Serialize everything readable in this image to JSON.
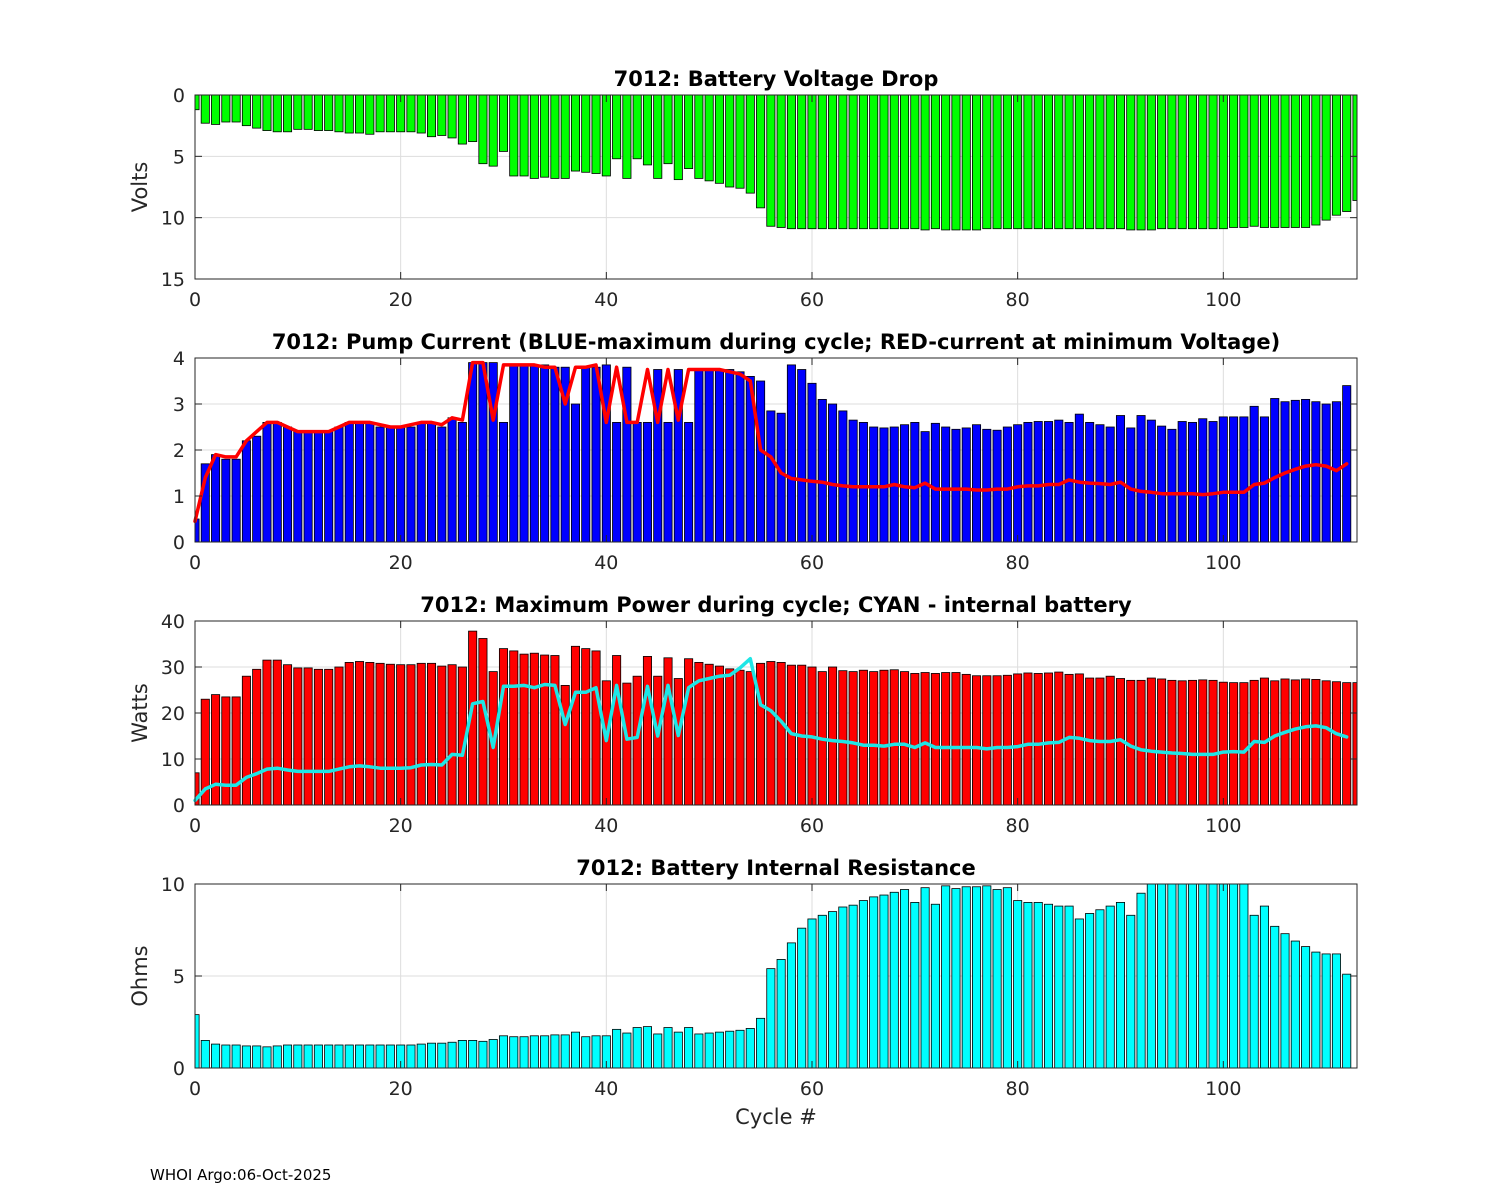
{
  "footer": "WHOI Argo:06-Oct-2025",
  "colors": {
    "voltage": "#00ff00",
    "current_bar": "#0000ff",
    "current_line": "#ff0000",
    "power_bar": "#ff0000",
    "power_line": "#1ee6e6",
    "resistance": "#00ffff",
    "grid": "#dddddd"
  },
  "chart_data": [
    {
      "type": "bar",
      "title": "7012: Battery Voltage Drop",
      "ylabel": "Volts",
      "xlabel": "",
      "xlim": [
        0,
        113
      ],
      "ylim": [
        0,
        15
      ],
      "y_reversed": true,
      "xticks": [
        0,
        20,
        40,
        60,
        80,
        100
      ],
      "yticks": [
        0,
        5,
        10,
        15
      ],
      "grid": true,
      "x_start": 0,
      "series": [
        {
          "values": [
            1.2,
            2.3,
            2.4,
            2.2,
            2.2,
            2.5,
            2.7,
            2.9,
            3.0,
            3.0,
            2.8,
            2.8,
            2.9,
            2.9,
            3.0,
            3.1,
            3.1,
            3.2,
            3.0,
            3.0,
            3.0,
            3.0,
            3.1,
            3.4,
            3.3,
            3.5,
            4.0,
            3.8,
            5.6,
            5.8,
            4.6,
            6.6,
            6.6,
            6.8,
            6.7,
            6.8,
            6.8,
            6.2,
            6.3,
            6.4,
            6.6,
            5.2,
            6.8,
            5.2,
            5.7,
            6.8,
            5.6,
            6.9,
            6.0,
            6.8,
            7.0,
            7.2,
            7.5,
            7.6,
            8.0,
            9.2,
            10.7,
            10.8,
            10.9,
            10.9,
            10.9,
            10.9,
            10.9,
            10.9,
            10.9,
            10.9,
            10.9,
            10.9,
            10.9,
            10.9,
            10.9,
            11.0,
            10.9,
            11.0,
            11.0,
            11.0,
            11.0,
            10.9,
            10.9,
            10.9,
            10.9,
            10.9,
            10.9,
            10.9,
            10.9,
            10.9,
            10.9,
            10.9,
            10.9,
            10.9,
            10.9,
            11.0,
            11.0,
            11.0,
            10.9,
            10.9,
            10.9,
            10.9,
            10.9,
            10.9,
            10.9,
            10.8,
            10.8,
            10.7,
            10.8,
            10.8,
            10.8,
            10.8,
            10.8,
            10.6,
            10.2,
            9.8,
            9.5,
            8.6
          ]
        }
      ]
    },
    {
      "type": "bar",
      "title": "7012: Pump Current (BLUE-maximum during cycle; RED-current at minimum Voltage)",
      "ylabel": "",
      "xlabel": "",
      "xlim": [
        0,
        113
      ],
      "ylim": [
        0,
        4
      ],
      "xticks": [
        0,
        20,
        40,
        60,
        80,
        100
      ],
      "yticks": [
        0,
        1,
        2,
        3,
        4
      ],
      "grid": true,
      "x_start": 0,
      "series": [
        {
          "values": [
            0.5,
            1.7,
            1.9,
            1.8,
            1.8,
            2.2,
            2.3,
            2.6,
            2.6,
            2.5,
            2.4,
            2.4,
            2.4,
            2.4,
            2.5,
            2.6,
            2.6,
            2.6,
            2.5,
            2.5,
            2.5,
            2.5,
            2.6,
            2.6,
            2.5,
            2.7,
            2.6,
            3.9,
            3.9,
            3.9,
            2.6,
            3.85,
            3.85,
            3.85,
            3.85,
            3.8,
            3.8,
            3.0,
            3.8,
            3.8,
            3.85,
            2.6,
            3.8,
            2.6,
            2.6,
            3.75,
            2.6,
            3.75,
            2.6,
            3.75,
            3.75,
            3.75,
            3.75,
            3.7,
            3.6,
            3.5,
            2.85,
            2.8,
            3.85,
            3.75,
            3.45,
            3.1,
            3.0,
            2.85,
            2.65,
            2.6,
            2.5,
            2.48,
            2.5,
            2.55,
            2.6,
            2.4,
            2.58,
            2.5,
            2.45,
            2.48,
            2.55,
            2.45,
            2.43,
            2.5,
            2.55,
            2.6,
            2.62,
            2.62,
            2.65,
            2.6,
            2.78,
            2.6,
            2.55,
            2.5,
            2.75,
            2.48,
            2.75,
            2.65,
            2.52,
            2.45,
            2.62,
            2.6,
            2.68,
            2.62,
            2.72,
            2.72,
            2.72,
            2.95,
            2.72,
            3.12,
            3.05,
            3.08,
            3.1,
            3.05,
            3.0,
            3.05,
            3.4
          ]
        },
        {
          "values": [
            0.45,
            1.4,
            1.9,
            1.85,
            1.85,
            2.2,
            2.4,
            2.6,
            2.6,
            2.5,
            2.4,
            2.4,
            2.4,
            2.4,
            2.5,
            2.6,
            2.6,
            2.6,
            2.55,
            2.5,
            2.5,
            2.55,
            2.6,
            2.6,
            2.55,
            2.7,
            2.65,
            3.9,
            3.9,
            2.65,
            3.85,
            3.85,
            3.85,
            3.85,
            3.8,
            3.8,
            3.0,
            3.8,
            3.8,
            3.85,
            2.6,
            3.8,
            2.6,
            2.6,
            3.75,
            2.6,
            3.75,
            2.65,
            3.75,
            3.75,
            3.75,
            3.75,
            3.7,
            3.65,
            3.5,
            2.0,
            1.85,
            1.5,
            1.38,
            1.35,
            1.32,
            1.3,
            1.25,
            1.22,
            1.2,
            1.2,
            1.2,
            1.2,
            1.25,
            1.2,
            1.18,
            1.28,
            1.15,
            1.15,
            1.15,
            1.15,
            1.13,
            1.13,
            1.15,
            1.15,
            1.2,
            1.22,
            1.22,
            1.25,
            1.25,
            1.35,
            1.3,
            1.28,
            1.27,
            1.25,
            1.3,
            1.15,
            1.1,
            1.08,
            1.05,
            1.05,
            1.05,
            1.05,
            1.03,
            1.05,
            1.08,
            1.08,
            1.08,
            1.25,
            1.28,
            1.4,
            1.5,
            1.58,
            1.65,
            1.68,
            1.65,
            1.55,
            1.7
          ]
        }
      ]
    },
    {
      "type": "bar",
      "title": "7012: Maximum Power during cycle; CYAN - internal battery",
      "ylabel": "Watts",
      "xlabel": "",
      "xlim": [
        0,
        113
      ],
      "ylim": [
        0,
        40
      ],
      "xticks": [
        0,
        20,
        40,
        60,
        80,
        100
      ],
      "yticks": [
        0,
        10,
        20,
        30,
        40
      ],
      "grid": true,
      "x_start": 0,
      "series": [
        {
          "values": [
            7,
            23,
            24,
            23.5,
            23.5,
            28,
            29.5,
            31.5,
            31.5,
            30.5,
            29.8,
            29.8,
            29.5,
            29.5,
            30,
            31,
            31.2,
            31,
            30.8,
            30.6,
            30.5,
            30.5,
            30.8,
            30.8,
            30.2,
            30.5,
            30,
            37.8,
            36.2,
            29,
            34,
            33.5,
            32.8,
            33,
            32.6,
            32.5,
            26,
            34.5,
            34,
            33.5,
            27,
            32.5,
            26.5,
            28,
            32.3,
            28,
            32,
            27.5,
            31.8,
            31,
            30.6,
            30.2,
            29.6,
            29.3,
            29,
            30.8,
            31.2,
            31,
            30.4,
            30.4,
            30,
            29,
            30,
            29.2,
            29,
            29.3,
            29,
            29.3,
            29.4,
            29,
            28.6,
            28.8,
            28.6,
            28.8,
            28.8,
            28.4,
            28.1,
            28.1,
            28.1,
            28.2,
            28.5,
            28.7,
            28.6,
            28.7,
            28.9,
            28.4,
            28.5,
            27.6,
            27.6,
            28,
            27.5,
            27.1,
            27.1,
            27.6,
            27.4,
            27.1,
            27,
            27.1,
            27.2,
            27.1,
            26.7,
            26.6,
            26.6,
            27.1,
            27.6,
            27,
            27.4,
            27.2,
            27.4,
            27.3,
            27,
            26.8,
            26.6,
            26.6
          ]
        },
        {
          "values": [
            1,
            3.5,
            4.5,
            4.3,
            4.3,
            6,
            6.8,
            7.8,
            8,
            7.6,
            7.3,
            7.3,
            7.3,
            7.3,
            7.8,
            8.3,
            8.5,
            8.3,
            8,
            8,
            8,
            8.1,
            8.7,
            8.8,
            8.7,
            11,
            10.8,
            22,
            22.5,
            12.5,
            25.8,
            25.8,
            26,
            25.5,
            26.2,
            26,
            17.5,
            24.5,
            24.5,
            25.5,
            14,
            26,
            14.3,
            14.7,
            25.8,
            15,
            26,
            15.1,
            25.5,
            27,
            27.5,
            28,
            28.2,
            29.8,
            31.8,
            21.8,
            20.5,
            18.2,
            15.5,
            15,
            14.8,
            14.3,
            14,
            13.8,
            13.5,
            13,
            13,
            12.8,
            13.2,
            13.2,
            12.5,
            13.5,
            12.5,
            12.5,
            12.5,
            12.5,
            12.5,
            12.2,
            12.5,
            12.5,
            12.7,
            13.2,
            13.2,
            13.5,
            13.6,
            14.7,
            14.5,
            14,
            13.8,
            13.8,
            14.2,
            12.8,
            12,
            11.7,
            11.5,
            11.3,
            11.2,
            11,
            11,
            11,
            11.5,
            11.6,
            11.5,
            13.8,
            13.6,
            15,
            15.8,
            16.5,
            17,
            17.2,
            16.8,
            15.5,
            14.8
          ]
        }
      ]
    },
    {
      "type": "bar",
      "title": "7012: Battery Internal Resistance",
      "ylabel": "Ohms",
      "xlabel": "Cycle #",
      "xlim": [
        0,
        113
      ],
      "ylim": [
        0,
        10
      ],
      "xticks": [
        0,
        20,
        40,
        60,
        80,
        100
      ],
      "yticks": [
        0,
        5,
        10
      ],
      "grid": true,
      "x_start": 0,
      "series": [
        {
          "values": [
            2.9,
            1.5,
            1.3,
            1.25,
            1.25,
            1.2,
            1.2,
            1.15,
            1.2,
            1.25,
            1.25,
            1.25,
            1.25,
            1.25,
            1.25,
            1.25,
            1.25,
            1.25,
            1.25,
            1.25,
            1.25,
            1.25,
            1.3,
            1.35,
            1.35,
            1.4,
            1.5,
            1.5,
            1.45,
            1.55,
            1.75,
            1.7,
            1.7,
            1.75,
            1.75,
            1.8,
            1.8,
            1.95,
            1.7,
            1.75,
            1.75,
            2.1,
            1.9,
            2.2,
            2.25,
            1.85,
            2.2,
            1.95,
            2.2,
            1.85,
            1.9,
            1.95,
            2.0,
            2.05,
            2.15,
            2.7,
            5.4,
            5.9,
            6.8,
            7.6,
            8.1,
            8.3,
            8.5,
            8.75,
            8.85,
            9.1,
            9.3,
            9.4,
            9.55,
            9.7,
            9.0,
            9.8,
            8.9,
            9.9,
            9.75,
            9.85,
            9.85,
            9.9,
            9.7,
            9.8,
            9.1,
            9.0,
            9.0,
            8.9,
            8.8,
            8.8,
            8.1,
            8.4,
            8.6,
            8.8,
            9.0,
            8.3,
            9.5,
            10,
            10,
            10,
            10,
            10,
            10,
            10,
            10,
            10,
            10,
            8.3,
            8.8,
            7.7,
            7.3,
            6.9,
            6.6,
            6.3,
            6.2,
            6.2,
            5.1
          ]
        }
      ]
    }
  ]
}
